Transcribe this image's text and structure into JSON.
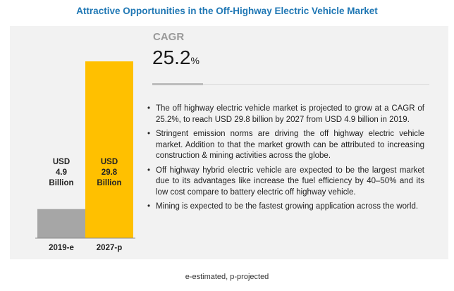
{
  "title": "Attractive Opportunities in the Off-Highway Electric Vehicle Market",
  "footnote": "e-estimated, p-projected",
  "cagr": {
    "label": "CAGR",
    "value": "25.2",
    "unit": "%"
  },
  "bullets": [
    "The off highway electric vehicle market is projected to grow at a CAGR of 25.2%, to reach USD 29.8 billion by 2027 from USD 4.9 billion in 2019.",
    "Stringent emission norms are driving the off highway electric vehicle market. Addition to that the market growth can be attributed to increasing construction & mining activities across the globe.",
    "Off highway hybrid electric vehicle are expected to be the largest market due to its advantages like increase the fuel efficiency by 40–50% and its low cost compare to battery electric off highway vehicle.",
    "Mining is expected to be the fastest growing application across the world."
  ],
  "chart_data": {
    "type": "bar",
    "categories": [
      "2019-e",
      "2027-p"
    ],
    "values": [
      4.9,
      29.8
    ],
    "value_labels": [
      [
        "USD",
        "4.9",
        "Billion"
      ],
      [
        "USD",
        "29.8",
        "Billion"
      ]
    ],
    "colors": [
      "#a6a6a6",
      "#ffc000"
    ],
    "ylim": [
      0,
      31
    ],
    "grid": false
  }
}
